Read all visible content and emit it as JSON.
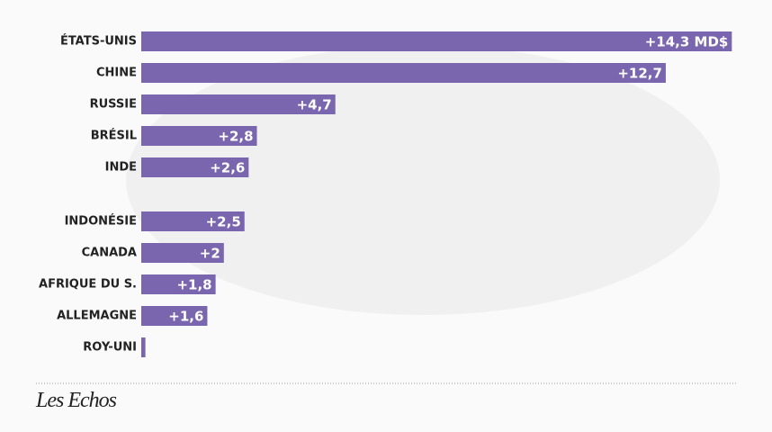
{
  "chart_data": {
    "type": "bar",
    "orientation": "horizontal",
    "categories": [
      "ÉTATS-UNIS",
      "CHINE",
      "RUSSIE",
      "BRÉSIL",
      "INDE",
      "INDONÉSIE",
      "CANADA",
      "AFRIQUE DU S.",
      "ALLEMAGNE",
      "ROY-UNI"
    ],
    "values": [
      14.3,
      12.7,
      4.7,
      2.8,
      2.6,
      2.5,
      2,
      1.8,
      1.6,
      0.1
    ],
    "value_labels": [
      "+14,3 MD$",
      "+12,7",
      "+4,7",
      "+2,8",
      "+2,6",
      "+2,5",
      "+2",
      "+1,8",
      "+1,6",
      null
    ],
    "color": "#7a66ae"
  },
  "footer": {
    "brand": "Les Echos"
  }
}
